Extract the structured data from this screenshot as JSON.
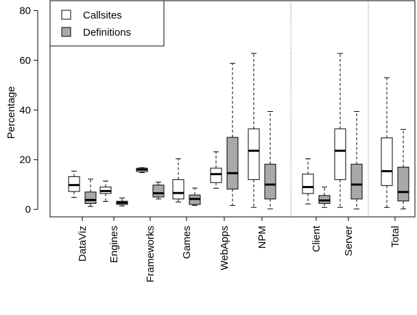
{
  "chart_data": {
    "type": "boxplot",
    "ylabel": "Percentage",
    "xlabel": "",
    "ylim": [
      -3,
      84
    ],
    "yticks": [
      0,
      20,
      40,
      60,
      80
    ],
    "grid": false,
    "legend_position": "top-left",
    "series": [
      {
        "name": "Callsites",
        "color": "#ffffff"
      },
      {
        "name": "Definitions",
        "color": "#a9a9a9"
      }
    ],
    "groups": [
      {
        "label": "DataViz",
        "boxes": [
          {
            "series": "Callsites",
            "min": 4.8,
            "q1": 7.2,
            "median": 9.8,
            "q3": 13.2,
            "max": 15.4
          },
          {
            "series": "Definitions",
            "min": 1.2,
            "q1": 2.4,
            "median": 3.8,
            "q3": 7.0,
            "max": 12.2
          }
        ]
      },
      {
        "label": "Engines",
        "boxes": [
          {
            "series": "Callsites",
            "min": 3.2,
            "q1": 6.4,
            "median": 7.4,
            "q3": 9.0,
            "max": 11.4
          },
          {
            "series": "Definitions",
            "min": 1.4,
            "q1": 2.0,
            "median": 2.7,
            "q3": 3.3,
            "max": 4.6
          }
        ]
      },
      {
        "label": "Frameworks",
        "boxes": [
          {
            "series": "Callsites",
            "min": 14.8,
            "q1": 15.2,
            "median": 16.0,
            "q3": 16.6,
            "max": 16.8
          },
          {
            "series": "Definitions",
            "min": 4.2,
            "q1": 5.0,
            "median": 6.5,
            "q3": 9.8,
            "max": 11.0
          }
        ]
      },
      {
        "label": "Games",
        "boxes": [
          {
            "series": "Callsites",
            "min": 3.0,
            "q1": 4.2,
            "median": 6.6,
            "q3": 12.0,
            "max": 20.4
          },
          {
            "series": "Definitions",
            "min": 1.6,
            "q1": 2.0,
            "median": 4.2,
            "q3": 5.8,
            "max": 8.6
          }
        ]
      },
      {
        "label": "WebApps",
        "boxes": [
          {
            "series": "Callsites",
            "min": 8.5,
            "q1": 10.8,
            "median": 14.2,
            "q3": 16.6,
            "max": 23.2
          },
          {
            "series": "Definitions",
            "min": 1.6,
            "q1": 8.2,
            "median": 14.6,
            "q3": 29.0,
            "max": 58.8
          }
        ]
      },
      {
        "label": "NPM",
        "boxes": [
          {
            "series": "Callsites",
            "min": 0.8,
            "q1": 12.0,
            "median": 23.6,
            "q3": 32.4,
            "max": 62.8
          },
          {
            "series": "Definitions",
            "min": 0.2,
            "q1": 4.2,
            "median": 10.0,
            "q3": 18.2,
            "max": 39.4
          }
        ]
      },
      {
        "label": "Client",
        "boxes": [
          {
            "series": "Callsites",
            "min": 2.2,
            "q1": 6.4,
            "median": 9.0,
            "q3": 14.2,
            "max": 20.4
          },
          {
            "series": "Definitions",
            "min": 0.8,
            "q1": 2.4,
            "median": 3.6,
            "q3": 5.6,
            "max": 9.0
          }
        ]
      },
      {
        "label": "Server",
        "boxes": [
          {
            "series": "Callsites",
            "min": 0.8,
            "q1": 12.0,
            "median": 23.6,
            "q3": 32.4,
            "max": 62.8
          },
          {
            "series": "Definitions",
            "min": 0.2,
            "q1": 4.2,
            "median": 10.0,
            "q3": 18.2,
            "max": 39.4
          }
        ]
      },
      {
        "label": "Total",
        "boxes": [
          {
            "series": "Callsites",
            "min": 0.8,
            "q1": 9.6,
            "median": 15.4,
            "q3": 28.8,
            "max": 53.0
          },
          {
            "series": "Definitions",
            "min": 0.2,
            "q1": 3.4,
            "median": 7.0,
            "q3": 17.0,
            "max": 32.2
          }
        ]
      }
    ]
  }
}
